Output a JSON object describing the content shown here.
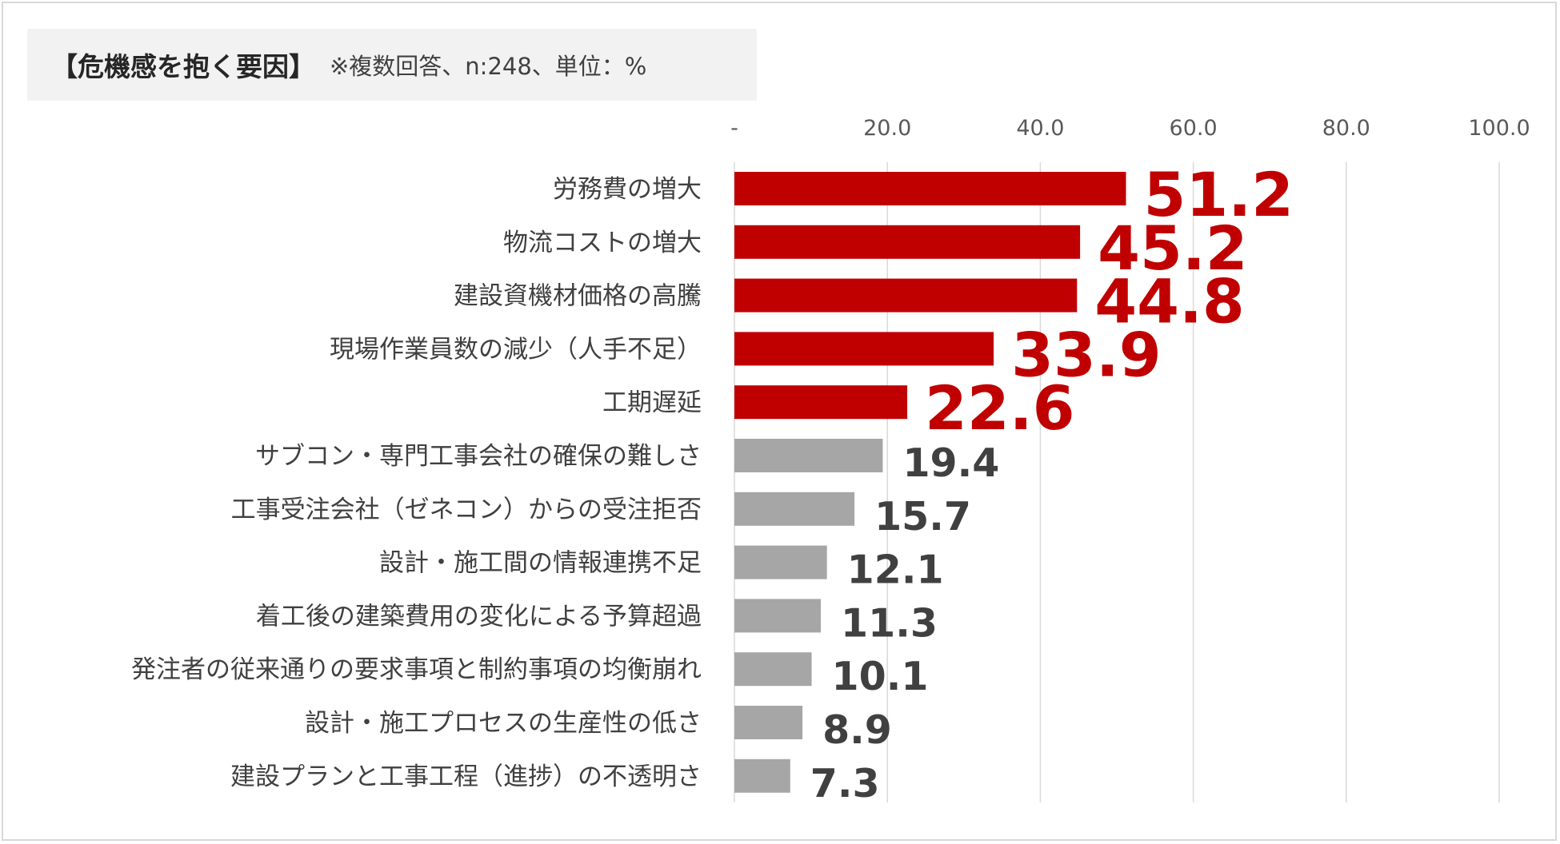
{
  "title": {
    "main": "【危機感を抱く要因】",
    "sub": "※複数回答、n:248、単位：%"
  },
  "chart_data": {
    "type": "bar",
    "orientation": "horizontal",
    "xlim": [
      0,
      100
    ],
    "ticks": [
      {
        "value": 0,
        "label": "-"
      },
      {
        "value": 20,
        "label": "20.0"
      },
      {
        "value": 40,
        "label": "40.0"
      },
      {
        "value": 60,
        "label": "60.0"
      },
      {
        "value": 80,
        "label": "80.0"
      },
      {
        "value": 100,
        "label": "100.0"
      }
    ],
    "grid": true,
    "categories": [
      "労務費の増大",
      "物流コストの増大",
      "建設資機材価格の高騰",
      "現場作業員数の減少（人手不足）",
      "工期遅延",
      "サブコン・専門工事会社の確保の難しさ",
      "工事受注会社（ゼネコン）からの受注拒否",
      "設計・施工間の情報連携不足",
      "着工後の建築費用の変化による予算超過",
      "発注者の従来通りの要求事項と制約事項の均衡崩れ",
      "設計・施工プロセスの生産性の低さ",
      "建設プランと工事工程（進捗）の不透明さ"
    ],
    "values": [
      51.2,
      45.2,
      44.8,
      33.9,
      22.6,
      19.4,
      15.7,
      12.1,
      11.3,
      10.1,
      8.9,
      7.3
    ],
    "value_labels": [
      "51.2",
      "45.2",
      "44.8",
      "33.9",
      "22.6",
      "19.4",
      "15.7",
      "12.1",
      "11.3",
      "10.1",
      "8.9",
      "7.3"
    ],
    "highlighted": [
      true,
      true,
      true,
      true,
      true,
      false,
      false,
      false,
      false,
      false,
      false,
      false
    ],
    "colors": {
      "highlight_bar": "#c00000",
      "normal_bar": "#a6a6a6",
      "highlight_label": "#c00000",
      "normal_label": "#404040"
    }
  }
}
